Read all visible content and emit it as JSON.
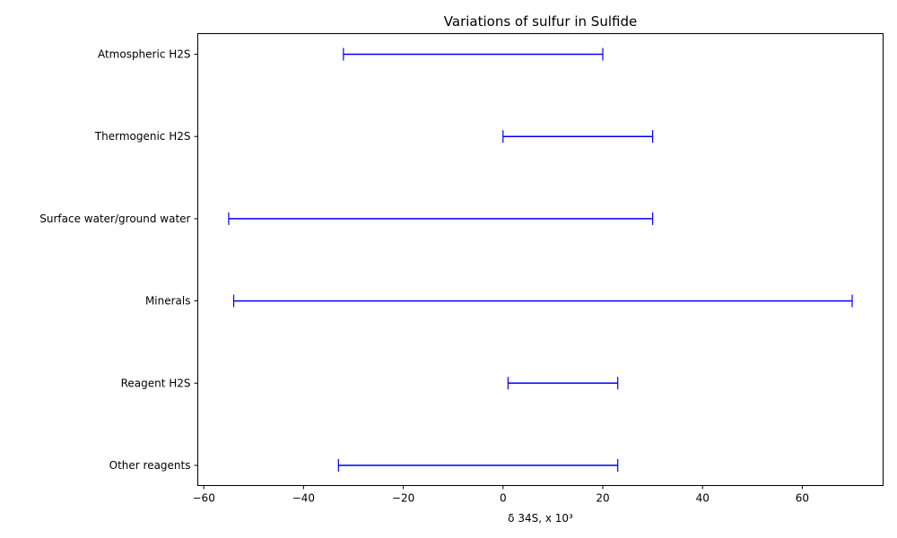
{
  "chart_data": {
    "type": "range",
    "title": "Variations of sulfur in Sulfide",
    "xlabel": "δ 34S, x 10³",
    "ylabel": "",
    "xlim": [
      -61.2,
      76.2
    ],
    "xticks": [
      -60,
      -40,
      -20,
      0,
      20,
      40,
      60
    ],
    "xtick_labels": [
      "−60",
      "−40",
      "−20",
      "0",
      "20",
      "40",
      "60"
    ],
    "grid": false,
    "color": "#0000ff",
    "categories": [
      "Atmospheric H2S",
      "Thermogenic H2S",
      "Surface water/ground water",
      "Minerals ",
      "Reagent H2S",
      "Other reagents"
    ],
    "ranges": [
      {
        "label": "Atmospheric H2S",
        "min": -32,
        "max": 20
      },
      {
        "label": "Thermogenic H2S",
        "min": 0,
        "max": 30
      },
      {
        "label": "Surface water/ground water",
        "min": -55,
        "max": 30
      },
      {
        "label": "Minerals ",
        "min": -54,
        "max": 70
      },
      {
        "label": "Reagent H2S",
        "min": 1,
        "max": 23
      },
      {
        "label": "Other reagents",
        "min": -33,
        "max": 23
      }
    ]
  }
}
